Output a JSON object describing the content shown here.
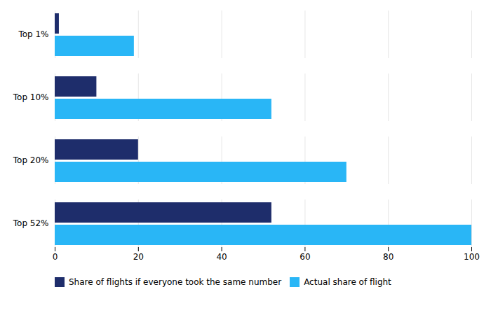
{
  "chart_data": {
    "type": "bar",
    "orientation": "horizontal",
    "categories": [
      "Top 1%",
      "Top 10%",
      "Top 20%",
      "Top 52%"
    ],
    "series": [
      {
        "name": "Share of flights if everyone took the same number",
        "color": "#1e2d6b",
        "values": [
          1,
          10,
          20,
          52
        ]
      },
      {
        "name": "Actual share of flight",
        "color": "#29b6f6",
        "values": [
          19,
          52,
          70,
          100
        ]
      }
    ],
    "xlim": [
      0,
      100
    ],
    "xticks": [
      0,
      20,
      40,
      60,
      80,
      100
    ],
    "grid": true,
    "legend": "bottom"
  }
}
